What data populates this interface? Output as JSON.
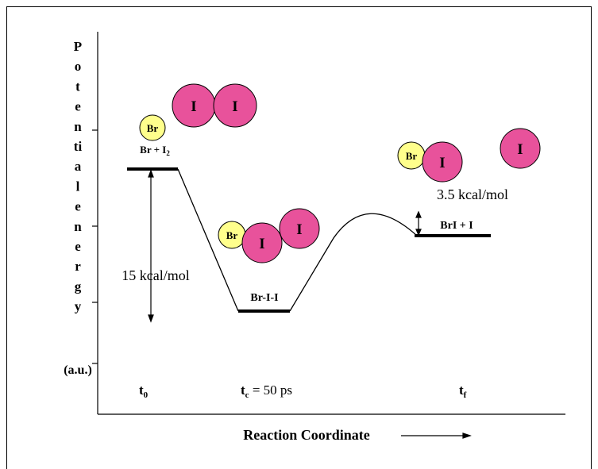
{
  "y_axis": {
    "letters": [
      "P",
      "o",
      "t",
      "e",
      "n",
      "ti",
      "a",
      "l",
      "e",
      "n",
      "e",
      "r",
      "g",
      "y"
    ],
    "units": "(a.u.)"
  },
  "x_axis": {
    "label": "Reaction Coordinate"
  },
  "states": [
    {
      "label": "Br + I",
      "sub": "2"
    },
    {
      "label": "Br-I-I"
    },
    {
      "label": "BrI + I"
    }
  ],
  "energies": [
    "15 kcal/mol",
    "3.5 kcal/mol"
  ],
  "times": [
    {
      "base": "t",
      "sub": "0"
    },
    {
      "base": "t",
      "sub": "c",
      "rest": " = 50 ps"
    },
    {
      "base": "t",
      "sub": "f"
    }
  ],
  "atoms": [
    "Br",
    "I",
    "I",
    "Br",
    "I",
    "I",
    "Br",
    "I",
    "I"
  ]
}
